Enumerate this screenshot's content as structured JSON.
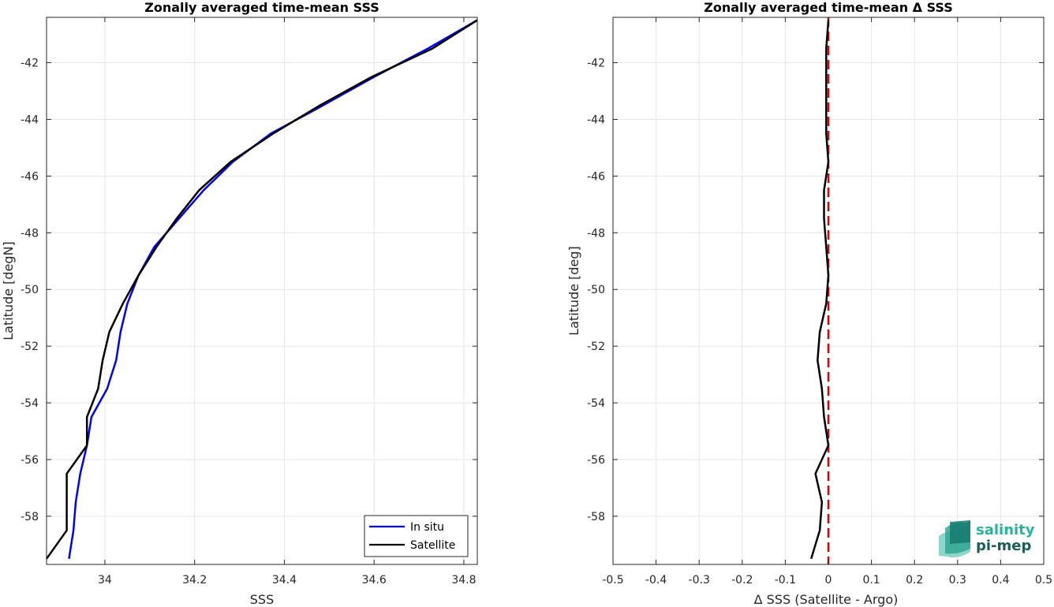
{
  "chart_data": [
    {
      "type": "line",
      "title": "Zonally averaged time-mean SSS",
      "xlabel": "SSS",
      "ylabel": "Latitude [degN]",
      "xlim": [
        33.87,
        34.83
      ],
      "ylim": [
        -59.7,
        -40.4
      ],
      "xticks": [
        34,
        34.2,
        34.4,
        34.6,
        34.8
      ],
      "xtick_labels": [
        "34",
        "34.2",
        "34.4",
        "34.6",
        "34.8"
      ],
      "yticks": [
        -42,
        -44,
        -46,
        -48,
        -50,
        -52,
        -54,
        -56,
        -58
      ],
      "ytick_labels": [
        "-42",
        "-44",
        "-46",
        "-48",
        "-50",
        "-52",
        "-54",
        "-56",
        "-58"
      ],
      "grid": true,
      "legend_position": "bottom-right",
      "series": [
        {
          "name": "In situ",
          "color": "#0000ff",
          "points": [
            [
              33.92,
              -59.5
            ],
            [
              33.93,
              -58.5
            ],
            [
              33.935,
              -57.5
            ],
            [
              33.945,
              -56.5
            ],
            [
              33.96,
              -55.5
            ],
            [
              33.97,
              -54.5
            ],
            [
              34.005,
              -53.5
            ],
            [
              34.025,
              -52.5
            ],
            [
              34.035,
              -51.5
            ],
            [
              34.05,
              -50.5
            ],
            [
              34.075,
              -49.5
            ],
            [
              34.11,
              -48.5
            ],
            [
              34.165,
              -47.5
            ],
            [
              34.22,
              -46.5
            ],
            [
              34.285,
              -45.5
            ],
            [
              34.37,
              -44.5
            ],
            [
              34.475,
              -43.6
            ],
            [
              34.6,
              -42.5
            ],
            [
              34.72,
              -41.5
            ],
            [
              34.83,
              -40.5
            ]
          ]
        },
        {
          "name": "Satellite",
          "color": "#000000",
          "points": [
            [
              33.87,
              -59.5
            ],
            [
              33.915,
              -58.5
            ],
            [
              33.915,
              -57.5
            ],
            [
              33.915,
              -56.5
            ],
            [
              33.96,
              -55.5
            ],
            [
              33.96,
              -54.5
            ],
            [
              33.985,
              -53.5
            ],
            [
              33.995,
              -52.5
            ],
            [
              34.01,
              -51.5
            ],
            [
              34.04,
              -50.5
            ],
            [
              34.075,
              -49.5
            ],
            [
              34.115,
              -48.5
            ],
            [
              34.16,
              -47.5
            ],
            [
              34.21,
              -46.5
            ],
            [
              34.28,
              -45.5
            ],
            [
              34.375,
              -44.5
            ],
            [
              34.48,
              -43.5
            ],
            [
              34.595,
              -42.5
            ],
            [
              34.73,
              -41.5
            ],
            [
              34.83,
              -40.5
            ]
          ]
        }
      ]
    },
    {
      "type": "line",
      "title": "Zonally averaged time-mean Δ SSS",
      "xlabel": "Δ SSS (Satellite - Argo)",
      "ylabel": "Latitude [deg]",
      "xlim": [
        -0.5,
        0.5
      ],
      "ylim": [
        -59.7,
        -40.4
      ],
      "xticks": [
        -0.5,
        -0.4,
        -0.3,
        -0.2,
        -0.1,
        0,
        0.1,
        0.2,
        0.3,
        0.4,
        0.5
      ],
      "xtick_labels": [
        "-0.5",
        "-0.4",
        "-0.3",
        "-0.2",
        "-0.1",
        "0",
        "0.1",
        "0.2",
        "0.3",
        "0.4",
        "0.5"
      ],
      "yticks": [
        -42,
        -44,
        -46,
        -48,
        -50,
        -52,
        -54,
        -56,
        -58
      ],
      "ytick_labels": [
        "-42",
        "-44",
        "-46",
        "-48",
        "-50",
        "-52",
        "-54",
        "-56",
        "-58"
      ],
      "grid": true,
      "reference_line": {
        "x": 0,
        "color": "#dd0000",
        "style": "dashed"
      },
      "series": [
        {
          "color": "#000000",
          "points": [
            [
              -0.04,
              -59.5
            ],
            [
              -0.02,
              -58.5
            ],
            [
              -0.015,
              -57.5
            ],
            [
              -0.03,
              -56.5
            ],
            [
              0.0,
              -55.5
            ],
            [
              -0.01,
              -54.5
            ],
            [
              -0.015,
              -53.5
            ],
            [
              -0.025,
              -52.5
            ],
            [
              -0.02,
              -51.5
            ],
            [
              -0.005,
              -50.5
            ],
            [
              0.0,
              -49.5
            ],
            [
              -0.005,
              -48.5
            ],
            [
              -0.01,
              -47.5
            ],
            [
              -0.01,
              -46.5
            ],
            [
              0.0,
              -45.5
            ],
            [
              -0.005,
              -44.5
            ],
            [
              -0.005,
              -43.5
            ],
            [
              -0.005,
              -42.5
            ],
            [
              -0.005,
              -41.5
            ],
            [
              0.0,
              -40.5
            ]
          ]
        }
      ]
    }
  ],
  "logo": {
    "line1": "salinity",
    "line2": "pi-mep"
  }
}
